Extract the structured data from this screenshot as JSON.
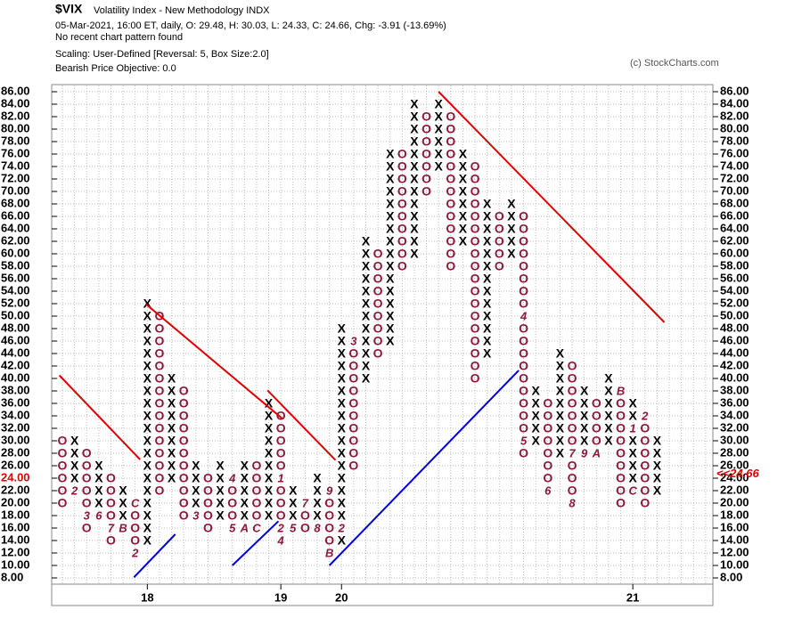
{
  "chart_data": {
    "type": "point-and-figure",
    "title": "$VIX",
    "subtitle": "Volatility Index - New Methodology  INDX",
    "info_lines": [
      "05-Mar-2021, 16:00 ET, daily, O: 29.48, H: 30.03, L: 24.33, C: 24.66, Chg: -3.91 (-13.69%)",
      "No recent chart pattern found",
      "Scaling: User-Defined [Reversal: 5, Box Size:2.0]",
      "Bearish Price Objective: 0.0"
    ],
    "copyright": "(c) StockCharts.com",
    "box_size": 2,
    "ylim": [
      8,
      86
    ],
    "yticks": [
      {
        "value": 86,
        "label": "86.00"
      },
      {
        "value": 84,
        "label": "84.00"
      },
      {
        "value": 82,
        "label": "82.00"
      },
      {
        "value": 80,
        "label": "80.00"
      },
      {
        "value": 78,
        "label": "78.00"
      },
      {
        "value": 76,
        "label": "76.00"
      },
      {
        "value": 74,
        "label": "74.00"
      },
      {
        "value": 72,
        "label": "72.00"
      },
      {
        "value": 70,
        "label": "70.00"
      },
      {
        "value": 68,
        "label": "68.00"
      },
      {
        "value": 66,
        "label": "66.00"
      },
      {
        "value": 64,
        "label": "64.00"
      },
      {
        "value": 62,
        "label": "62.00"
      },
      {
        "value": 60,
        "label": "60.00"
      },
      {
        "value": 58,
        "label": "58.00"
      },
      {
        "value": 56,
        "label": "56.00"
      },
      {
        "value": 54,
        "label": "54.00"
      },
      {
        "value": 52,
        "label": "52.00"
      },
      {
        "value": 50,
        "label": "50.00"
      },
      {
        "value": 48,
        "label": "48.00"
      },
      {
        "value": 46,
        "label": "46.00"
      },
      {
        "value": 44,
        "label": "44.00"
      },
      {
        "value": 42,
        "label": "42.00"
      },
      {
        "value": 40,
        "label": "40.00"
      },
      {
        "value": 38,
        "label": "38.00"
      },
      {
        "value": 36,
        "label": "36.00"
      },
      {
        "value": 34,
        "label": "34.00"
      },
      {
        "value": 32,
        "label": "32.00"
      },
      {
        "value": 30,
        "label": "30.00"
      },
      {
        "value": 28,
        "label": "28.00"
      },
      {
        "value": 26,
        "label": "26.00"
      },
      {
        "value": 24,
        "label": "24.00"
      },
      {
        "value": 22,
        "label": "22.00"
      },
      {
        "value": 20,
        "label": "20.00"
      },
      {
        "value": 18,
        "label": "18.00"
      },
      {
        "value": 16,
        "label": "16.00"
      },
      {
        "value": 14,
        "label": "14.00"
      },
      {
        "value": 12,
        "label": "12.00"
      },
      {
        "value": 10,
        "label": "10.00"
      },
      {
        "value": 8,
        "label": "8.00"
      }
    ],
    "last_price": {
      "value": 24.66,
      "label": "<<24.66"
    },
    "x_color": "#000000",
    "o_color": "#8b1a3a",
    "marker_color": "#8b1a3a",
    "columns": [
      {
        "kind": "O",
        "low": 20,
        "high": 30,
        "markers": []
      },
      {
        "kind": "X",
        "low": 22,
        "high": 30,
        "markers": [
          {
            "value": 22,
            "label": "2"
          }
        ]
      },
      {
        "kind": "O",
        "low": 16,
        "high": 28,
        "markers": [
          {
            "value": 18,
            "label": "3"
          }
        ]
      },
      {
        "kind": "X",
        "low": 18,
        "high": 26,
        "markers": [
          {
            "value": 18,
            "label": "6"
          }
        ]
      },
      {
        "kind": "O",
        "low": 14,
        "high": 24,
        "markers": [
          {
            "value": 16,
            "label": "7"
          }
        ]
      },
      {
        "kind": "X",
        "low": 16,
        "high": 22,
        "markers": [
          {
            "value": 16,
            "label": "B"
          }
        ]
      },
      {
        "kind": "O",
        "low": 12,
        "high": 20,
        "markers": [
          {
            "value": 20,
            "label": "C"
          },
          {
            "value": 12,
            "label": "2"
          }
        ]
      },
      {
        "kind": "X",
        "low": 14,
        "high": 52,
        "markers": []
      },
      {
        "kind": "O",
        "low": 22,
        "high": 50,
        "markers": []
      },
      {
        "kind": "X",
        "low": 24,
        "high": 40,
        "markers": []
      },
      {
        "kind": "O",
        "low": 18,
        "high": 38,
        "markers": []
      },
      {
        "kind": "X",
        "low": 20,
        "high": 26,
        "markers": [
          {
            "value": 18,
            "label": "3"
          }
        ]
      },
      {
        "kind": "O",
        "low": 16,
        "high": 24,
        "markers": []
      },
      {
        "kind": "X",
        "low": 18,
        "high": 26,
        "markers": []
      },
      {
        "kind": "O",
        "low": 16,
        "high": 24,
        "markers": [
          {
            "value": 24,
            "label": "4"
          },
          {
            "value": 16,
            "label": "5"
          }
        ]
      },
      {
        "kind": "X",
        "low": 18,
        "high": 26,
        "markers": [
          {
            "value": 16,
            "label": "A"
          }
        ]
      },
      {
        "kind": "O",
        "low": 16,
        "high": 26,
        "markers": [
          {
            "value": 16,
            "label": "C"
          }
        ]
      },
      {
        "kind": "X",
        "low": 18,
        "high": 36,
        "markers": []
      },
      {
        "kind": "O",
        "low": 14,
        "high": 34,
        "markers": [
          {
            "value": 24,
            "label": "1"
          },
          {
            "value": 16,
            "label": "2"
          },
          {
            "value": 14,
            "label": "4"
          }
        ]
      },
      {
        "kind": "X",
        "low": 16,
        "high": 22,
        "markers": [
          {
            "value": 16,
            "label": "5"
          }
        ]
      },
      {
        "kind": "O",
        "low": 16,
        "high": 20,
        "markers": [
          {
            "value": 20,
            "label": "7"
          }
        ]
      },
      {
        "kind": "X",
        "low": 16,
        "high": 24,
        "markers": [
          {
            "value": 16,
            "label": "8"
          }
        ]
      },
      {
        "kind": "O",
        "low": 12,
        "high": 22,
        "markers": [
          {
            "value": 22,
            "label": "9"
          },
          {
            "value": 12,
            "label": "B"
          }
        ]
      },
      {
        "kind": "X",
        "low": 14,
        "high": 48,
        "markers": [
          {
            "value": 16,
            "label": "2"
          }
        ]
      },
      {
        "kind": "O",
        "low": 26,
        "high": 46,
        "markers": [
          {
            "value": 46,
            "label": "3"
          }
        ]
      },
      {
        "kind": "X",
        "low": 40,
        "high": 62,
        "markers": []
      },
      {
        "kind": "O",
        "low": 44,
        "high": 60,
        "markers": []
      },
      {
        "kind": "X",
        "low": 46,
        "high": 76,
        "markers": []
      },
      {
        "kind": "O",
        "low": 58,
        "high": 76,
        "markers": []
      },
      {
        "kind": "X",
        "low": 60,
        "high": 84,
        "markers": []
      },
      {
        "kind": "O",
        "low": 70,
        "high": 82,
        "markers": []
      },
      {
        "kind": "X",
        "low": 74,
        "high": 84,
        "markers": []
      },
      {
        "kind": "O",
        "low": 58,
        "high": 82,
        "markers": []
      },
      {
        "kind": "X",
        "low": 62,
        "high": 76,
        "markers": []
      },
      {
        "kind": "O",
        "low": 40,
        "high": 74,
        "markers": []
      },
      {
        "kind": "X",
        "low": 44,
        "high": 68,
        "markers": []
      },
      {
        "kind": "O",
        "low": 58,
        "high": 66,
        "markers": []
      },
      {
        "kind": "X",
        "low": 60,
        "high": 68,
        "markers": []
      },
      {
        "kind": "O",
        "low": 28,
        "high": 66,
        "markers": [
          {
            "value": 50,
            "label": "4"
          },
          {
            "value": 30,
            "label": "5"
          }
        ]
      },
      {
        "kind": "X",
        "low": 30,
        "high": 38,
        "markers": []
      },
      {
        "kind": "O",
        "low": 22,
        "high": 36,
        "markers": [
          {
            "value": 22,
            "label": "6"
          }
        ]
      },
      {
        "kind": "X",
        "low": 28,
        "high": 44,
        "markers": []
      },
      {
        "kind": "O",
        "low": 20,
        "high": 42,
        "markers": [
          {
            "value": 28,
            "label": "7"
          },
          {
            "value": 20,
            "label": "8"
          }
        ]
      },
      {
        "kind": "X",
        "low": 28,
        "high": 38,
        "markers": [
          {
            "value": 28,
            "label": "9"
          }
        ]
      },
      {
        "kind": "O",
        "low": 28,
        "high": 36,
        "markers": [
          {
            "value": 28,
            "label": "A"
          }
        ]
      },
      {
        "kind": "X",
        "low": 30,
        "high": 40,
        "markers": []
      },
      {
        "kind": "O",
        "low": 20,
        "high": 38,
        "markers": [
          {
            "value": 38,
            "label": "B"
          }
        ]
      },
      {
        "kind": "X",
        "low": 22,
        "high": 36,
        "markers": [
          {
            "value": 32,
            "label": "1"
          },
          {
            "value": 22,
            "label": "C"
          }
        ]
      },
      {
        "kind": "O",
        "low": 20,
        "high": 34,
        "markers": [
          {
            "value": 34,
            "label": "2"
          }
        ]
      },
      {
        "kind": "X",
        "low": 22,
        "high": 30,
        "markers": []
      }
    ],
    "x_labels": [
      {
        "column": 7,
        "label": "18"
      },
      {
        "column": 18,
        "label": "19"
      },
      {
        "column": 23,
        "label": "20"
      },
      {
        "column": 47,
        "label": "21"
      }
    ],
    "trend_lines": [
      {
        "color": "#e00000",
        "from": [
          -0.25,
          40.5
        ],
        "to": [
          6.4,
          27
        ]
      },
      {
        "color": "#e00000",
        "from": [
          6.9,
          51.9
        ],
        "to": [
          18.1,
          33.6
        ]
      },
      {
        "color": "#e00000",
        "from": [
          16.9,
          38.1
        ],
        "to": [
          22.5,
          26.9
        ]
      },
      {
        "color": "#e00000",
        "from": [
          31,
          86
        ],
        "to": [
          49.6,
          49
        ]
      },
      {
        "color": "#0000e0",
        "from": [
          5.9,
          8.1
        ],
        "to": [
          9.3,
          15
        ]
      },
      {
        "color": "#0000e0",
        "from": [
          14,
          10
        ],
        "to": [
          17.8,
          17.1
        ]
      },
      {
        "color": "#0000e0",
        "from": [
          22,
          10
        ],
        "to": [
          37.6,
          41.3
        ]
      }
    ]
  }
}
